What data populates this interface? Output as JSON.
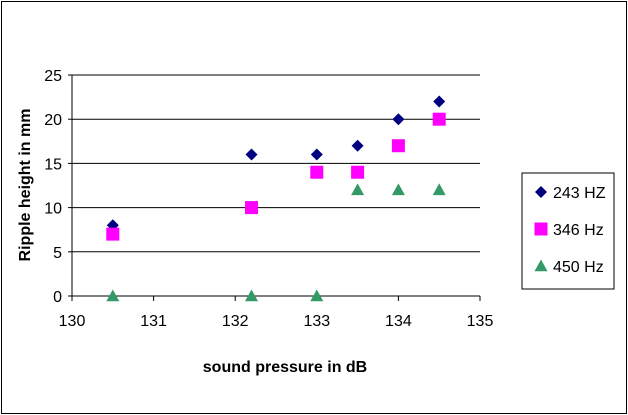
{
  "chart_data": {
    "type": "scatter",
    "xlabel": "sound pressure in dB",
    "ylabel": "Ripple height in mm",
    "xlim": [
      130,
      135
    ],
    "ylim": [
      0,
      25
    ],
    "x_ticks": [
      130,
      131,
      132,
      133,
      134,
      135
    ],
    "y_ticks": [
      0,
      5,
      10,
      15,
      20,
      25
    ],
    "grid": {
      "horizontal": true,
      "vertical": false
    },
    "legend_position": "right",
    "series": [
      {
        "name": "243 HZ",
        "marker": "diamond",
        "color": "#000080",
        "points": [
          {
            "x": 130.5,
            "y": 8
          },
          {
            "x": 132.2,
            "y": 16
          },
          {
            "x": 133.0,
            "y": 16
          },
          {
            "x": 133.5,
            "y": 17
          },
          {
            "x": 134.0,
            "y": 20
          },
          {
            "x": 134.5,
            "y": 22
          }
        ]
      },
      {
        "name": "346 Hz",
        "marker": "square",
        "color": "#FF00FF",
        "points": [
          {
            "x": 130.5,
            "y": 7
          },
          {
            "x": 132.2,
            "y": 10
          },
          {
            "x": 133.0,
            "y": 14
          },
          {
            "x": 133.5,
            "y": 14
          },
          {
            "x": 134.0,
            "y": 17
          },
          {
            "x": 134.5,
            "y": 20
          }
        ]
      },
      {
        "name": "450 Hz",
        "marker": "triangle",
        "color": "#339966",
        "points": [
          {
            "x": 130.5,
            "y": 0
          },
          {
            "x": 132.2,
            "y": 0
          },
          {
            "x": 133.0,
            "y": 0
          },
          {
            "x": 133.5,
            "y": 12
          },
          {
            "x": 134.0,
            "y": 12
          },
          {
            "x": 134.5,
            "y": 12
          }
        ]
      }
    ]
  }
}
